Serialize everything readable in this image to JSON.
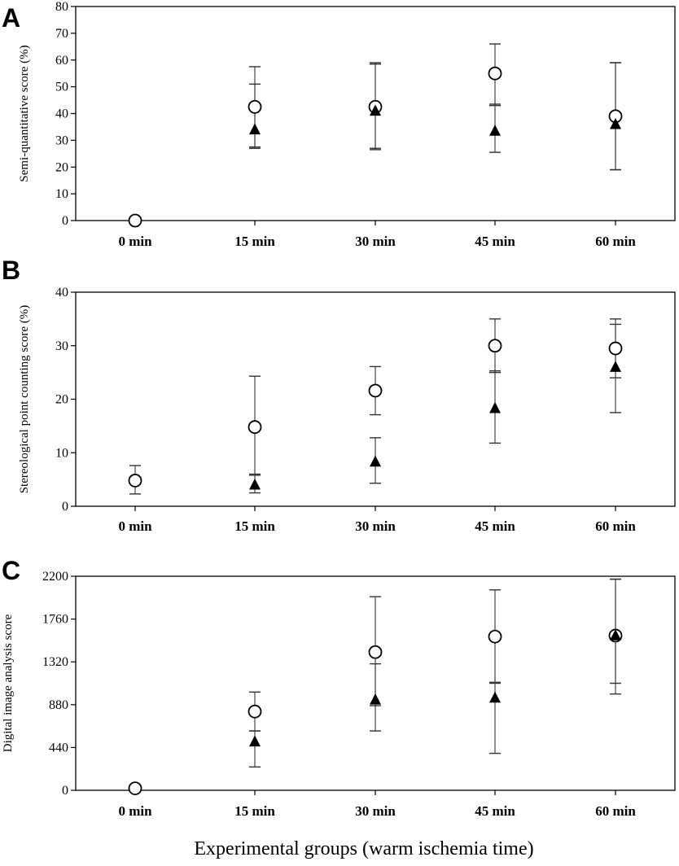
{
  "figure": {
    "xlabel": "Experimental groups (warm ischemia time)"
  },
  "chart_data": [
    {
      "panel": "A",
      "type": "scatter",
      "ylabel": "Semi-quantitative score (%)",
      "categories": [
        "0 min",
        "15 min",
        "30 min",
        "45 min",
        "60 min"
      ],
      "ylim": [
        0,
        80
      ],
      "yticks": [
        0,
        10,
        20,
        30,
        40,
        50,
        60,
        70,
        80
      ],
      "grid": false,
      "series": [
        {
          "marker": "circle",
          "values": [
            0,
            42.5,
            42.5,
            55,
            39
          ],
          "err_low": [
            0,
            15,
            16,
            12,
            20
          ],
          "err_high": [
            0,
            15,
            16,
            11,
            20
          ]
        },
        {
          "marker": "triangle",
          "values": [
            null,
            34,
            41,
            33.5,
            36
          ],
          "err_low": [
            null,
            7,
            14,
            8,
            17
          ],
          "err_high": [
            null,
            17,
            18,
            10,
            23
          ]
        }
      ]
    },
    {
      "panel": "B",
      "type": "scatter",
      "ylabel": "Stereological point counting score (%)",
      "categories": [
        "0 min",
        "15 min",
        "30 min",
        "45 min",
        "60 min"
      ],
      "ylim": [
        0,
        40
      ],
      "yticks": [
        0,
        10,
        20,
        30,
        40
      ],
      "grid": false,
      "series": [
        {
          "marker": "circle",
          "values": [
            4.8,
            14.8,
            21.6,
            30,
            29.5
          ],
          "err_low": [
            2.5,
            9,
            4.5,
            5,
            5.5
          ],
          "err_high": [
            2.8,
            9.5,
            4.5,
            5,
            5.5
          ]
        },
        {
          "marker": "triangle",
          "values": [
            null,
            4,
            8.3,
            18.3,
            26
          ],
          "err_low": [
            null,
            1.5,
            4,
            6.5,
            8.5
          ],
          "err_high": [
            null,
            2,
            4.5,
            7,
            8
          ]
        }
      ]
    },
    {
      "panel": "C",
      "type": "scatter",
      "ylabel": "Digital image analysis score",
      "categories": [
        "0 min",
        "15 min",
        "30 min",
        "45 min",
        "60 min"
      ],
      "ylim": [
        0,
        2200
      ],
      "yticks": [
        0,
        440,
        880,
        1320,
        1760,
        2200
      ],
      "grid": false,
      "series": [
        {
          "marker": "circle",
          "values": [
            20,
            810,
            1420,
            1580,
            1590
          ],
          "err_low": [
            0,
            200,
            550,
            480,
            600
          ],
          "err_high": [
            0,
            200,
            570,
            480,
            580
          ]
        },
        {
          "marker": "triangle",
          "values": [
            null,
            500,
            930,
            950,
            1590
          ],
          "err_low": [
            null,
            260,
            320,
            570,
            490
          ],
          "err_high": [
            null,
            110,
            370,
            160,
            580
          ]
        }
      ]
    }
  ]
}
